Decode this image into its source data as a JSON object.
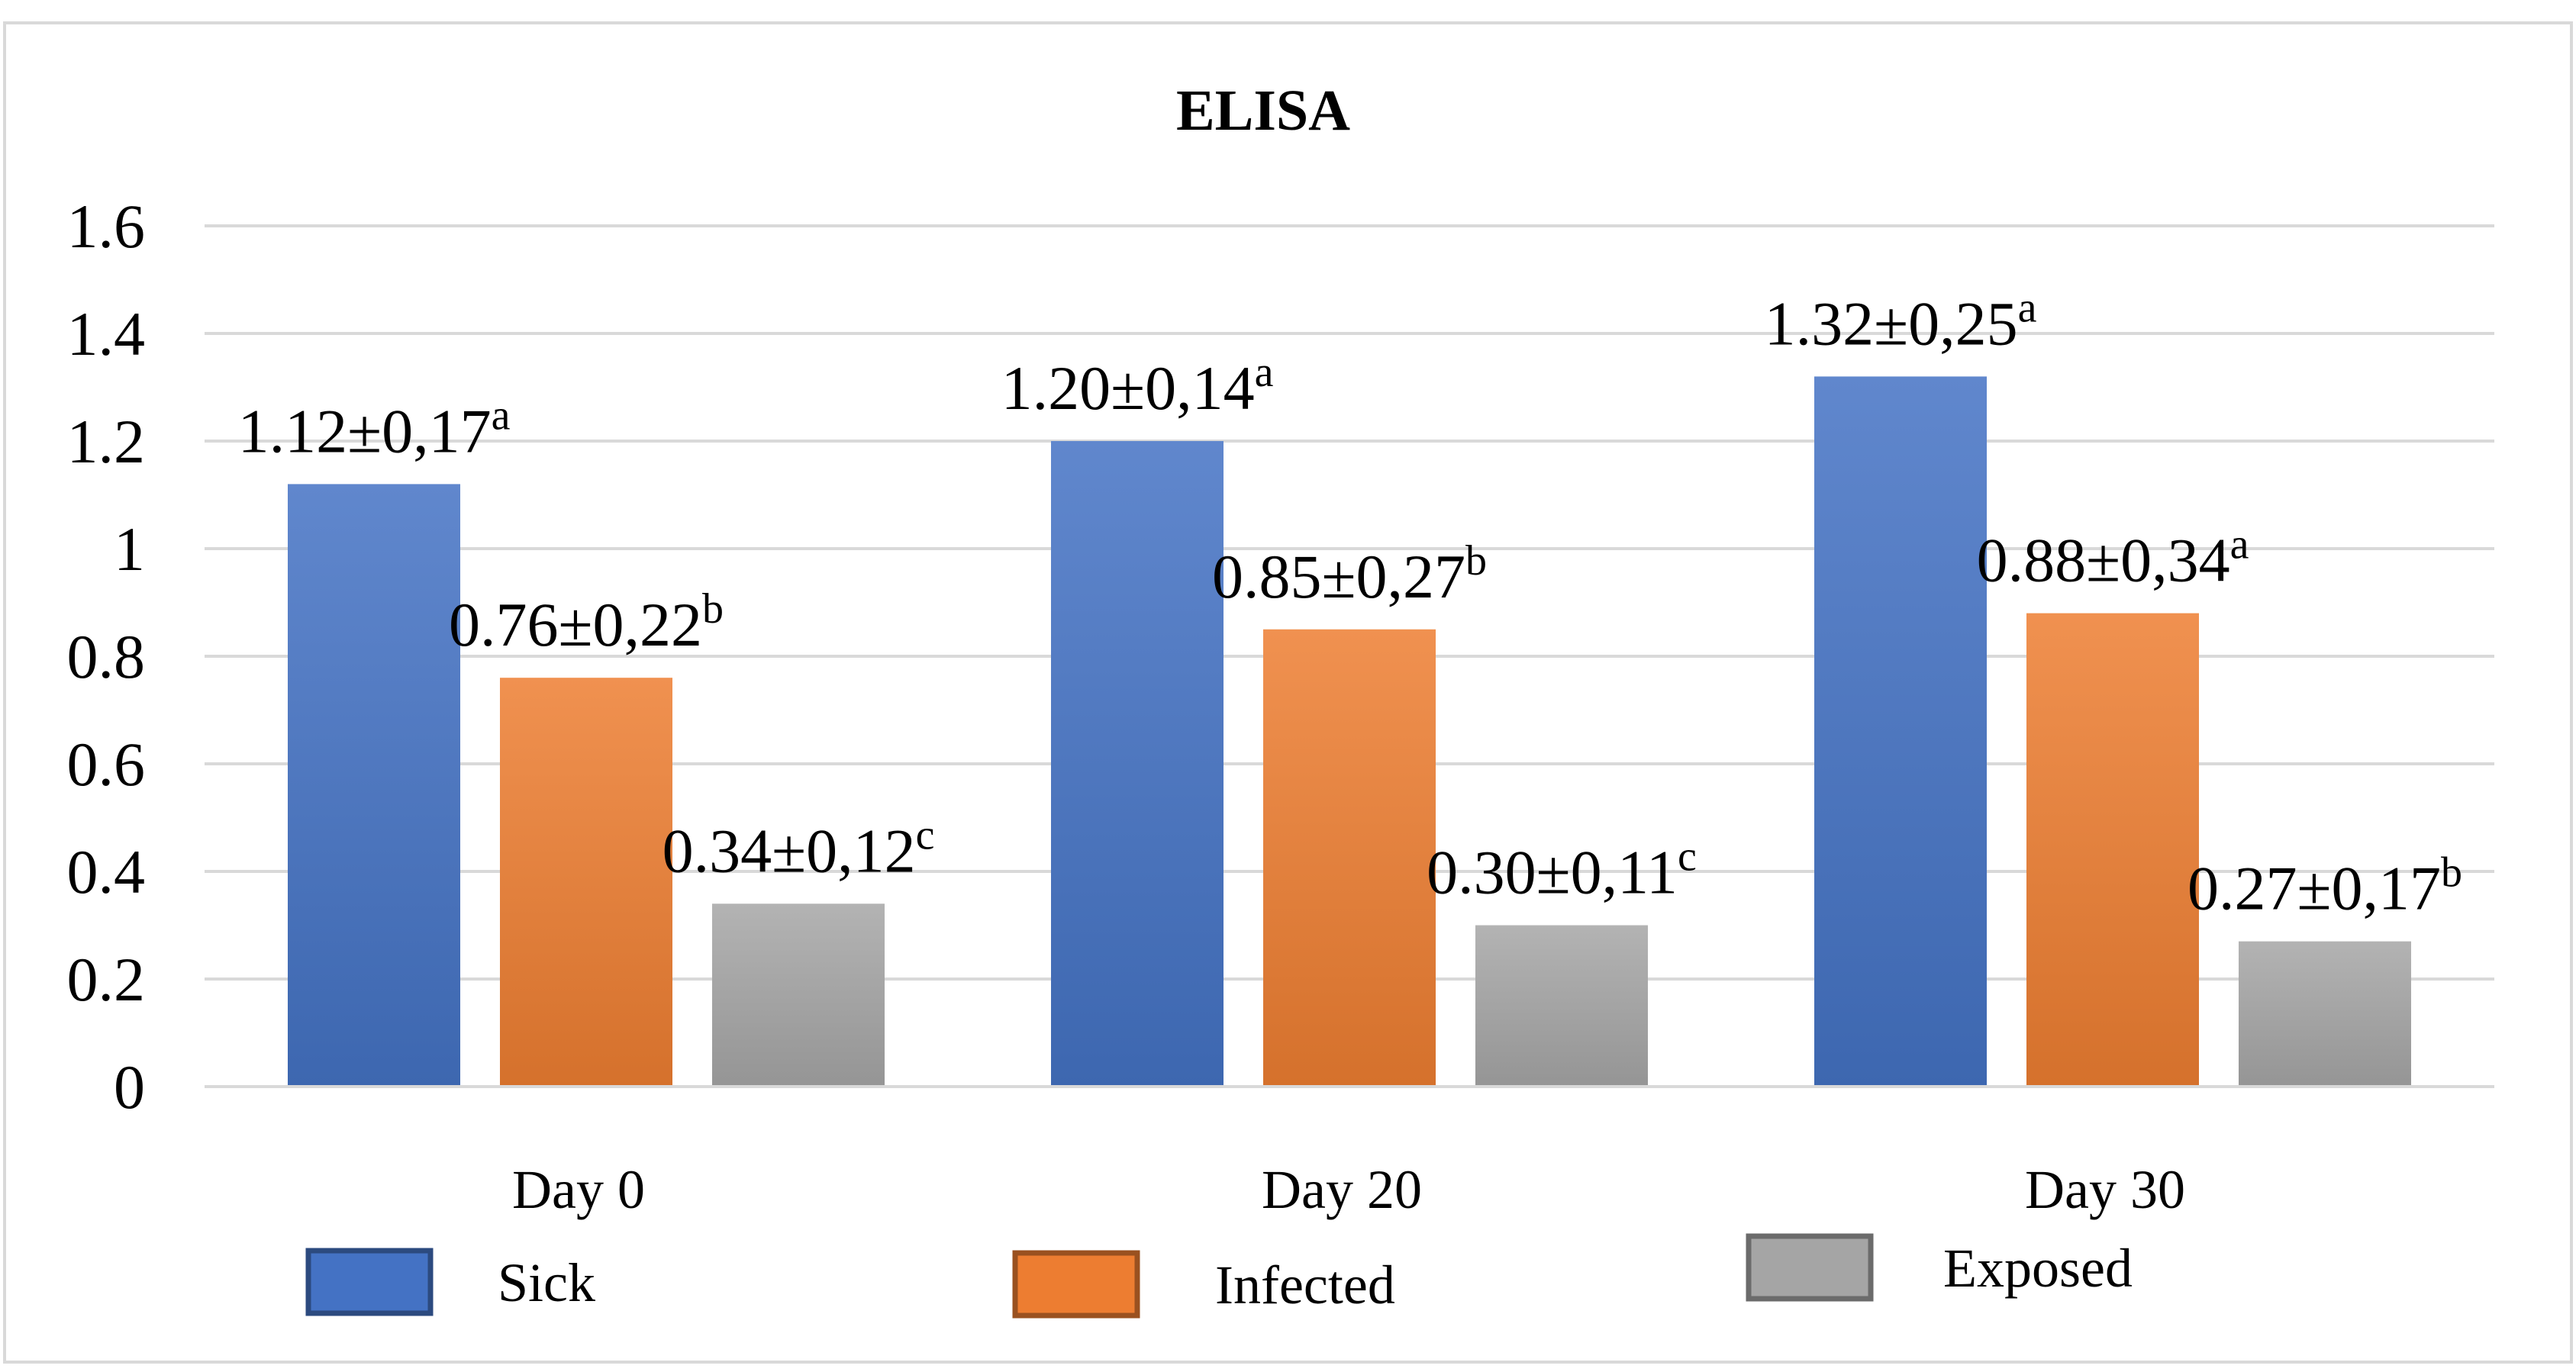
{
  "chart_data": {
    "type": "bar",
    "title": "ELISA",
    "xlabel": "",
    "ylabel": "",
    "ylim": [
      0,
      1.6
    ],
    "yticks": [
      "0",
      "0.2",
      "0.4",
      "0.6",
      "0.8",
      "1",
      "1.2",
      "1.4",
      "1.6"
    ],
    "grid": true,
    "legend_position": "bottom",
    "categories": [
      "Day 0",
      "Day 20",
      "Day 30"
    ],
    "series": [
      {
        "name": "Sick",
        "color": "#4472C4",
        "values": [
          1.12,
          1.2,
          1.32
        ],
        "labels": [
          "1.12±0,17",
          "1.20±0,14",
          "1.32±0,25"
        ],
        "sup": [
          "a",
          "a",
          "a"
        ]
      },
      {
        "name": "Infected",
        "color": "#ED7D31",
        "values": [
          0.76,
          0.85,
          0.88
        ],
        "labels": [
          "0.76±0,22",
          "0.85±0,27",
          "0.88±0,34"
        ],
        "sup": [
          "b",
          "b",
          "a"
        ]
      },
      {
        "name": "Exposed",
        "color": "#A5A5A5",
        "values": [
          0.34,
          0.3,
          0.27
        ],
        "labels": [
          "0.34±0,12",
          "0.30±0,11",
          "0.27±0,17"
        ],
        "sup": [
          "c",
          "c",
          "b"
        ]
      }
    ]
  }
}
